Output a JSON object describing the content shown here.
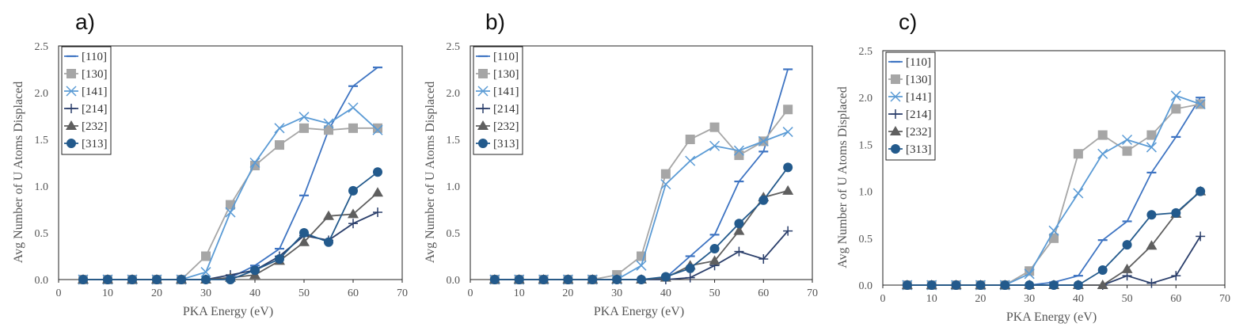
{
  "colors": {
    "110": "#3e74c2",
    "130": "#a6a6a6",
    "141": "#5b9bd5",
    "214": "#2b3f6b",
    "232": "#5f5f5f",
    "313": "#235a8c"
  },
  "chart_data": [
    {
      "panel": "a)",
      "type": "line",
      "xlabel": "PKA Energy (eV)",
      "ylabel": "Avg Number of U Atoms Displaced",
      "xlim": [
        0,
        70
      ],
      "ylim": [
        0,
        2.5
      ],
      "xticks": [
        "0",
        "10",
        "20",
        "30",
        "40",
        "50",
        "60",
        "70"
      ],
      "yticks": [
        "0.0",
        "0.5",
        "1.0",
        "1.5",
        "2.0",
        "2.5"
      ],
      "legend_position": "top-left",
      "x": [
        5,
        10,
        15,
        20,
        25,
        30,
        35,
        40,
        45,
        50,
        55,
        60,
        65
      ],
      "series": [
        {
          "name": "[110]",
          "marker": "dash",
          "values": [
            0,
            0,
            0,
            0,
            0,
            0,
            0.02,
            0.15,
            0.33,
            0.9,
            1.6,
            2.07,
            2.27
          ]
        },
        {
          "name": "[130]",
          "marker": "square",
          "values": [
            0,
            0,
            0,
            0,
            0,
            0.25,
            0.8,
            1.22,
            1.44,
            1.62,
            1.6,
            1.62,
            1.62
          ]
        },
        {
          "name": "[141]",
          "marker": "x",
          "values": [
            0,
            0,
            0,
            0,
            0,
            0.08,
            0.72,
            1.25,
            1.62,
            1.74,
            1.67,
            1.84,
            1.6
          ]
        },
        {
          "name": "[214]",
          "marker": "plus",
          "values": [
            0,
            0,
            0,
            0,
            0,
            0,
            0.05,
            0.1,
            0.25,
            0.47,
            0.42,
            0.6,
            0.72
          ]
        },
        {
          "name": "[232]",
          "marker": "triangle",
          "values": [
            0,
            0,
            0,
            0,
            0,
            0,
            0.02,
            0.05,
            0.2,
            0.4,
            0.68,
            0.7,
            0.93
          ]
        },
        {
          "name": "[313]",
          "marker": "circle",
          "values": [
            0,
            0,
            0,
            0,
            0,
            0,
            0,
            0.1,
            0.22,
            0.5,
            0.4,
            0.95,
            1.15
          ]
        }
      ]
    },
    {
      "panel": "b)",
      "type": "line",
      "xlabel": "PKA Energy (eV)",
      "ylabel": "Avg Number of U Atoms Displaced",
      "xlim": [
        0,
        70
      ],
      "ylim": [
        0,
        2.5
      ],
      "xticks": [
        "0",
        "10",
        "20",
        "30",
        "40",
        "50",
        "60",
        "70"
      ],
      "yticks": [
        "0.0",
        "0.5",
        "1.0",
        "1.5",
        "2.0",
        "2.5"
      ],
      "legend_position": "top-left",
      "x": [
        5,
        10,
        15,
        20,
        25,
        30,
        35,
        40,
        45,
        50,
        55,
        60,
        65
      ],
      "series": [
        {
          "name": "[110]",
          "marker": "dash",
          "values": [
            0,
            0,
            0,
            0,
            0,
            0,
            0,
            0.02,
            0.25,
            0.48,
            1.05,
            1.37,
            2.25
          ]
        },
        {
          "name": "[130]",
          "marker": "square",
          "values": [
            0,
            0,
            0,
            0,
            0,
            0.05,
            0.25,
            1.13,
            1.5,
            1.63,
            1.33,
            1.48,
            1.82
          ]
        },
        {
          "name": "[141]",
          "marker": "x",
          "values": [
            0,
            0,
            0,
            0,
            0,
            0,
            0.15,
            1.02,
            1.27,
            1.43,
            1.38,
            1.48,
            1.58
          ]
        },
        {
          "name": "[214]",
          "marker": "plus",
          "values": [
            0,
            0,
            0,
            0,
            0,
            0,
            0,
            0,
            0.02,
            0.15,
            0.3,
            0.22,
            0.52
          ]
        },
        {
          "name": "[232]",
          "marker": "triangle",
          "values": [
            0,
            0,
            0,
            0,
            0,
            0,
            0,
            0.02,
            0.15,
            0.2,
            0.52,
            0.88,
            0.95
          ]
        },
        {
          "name": "[313]",
          "marker": "circle",
          "values": [
            0,
            0,
            0,
            0,
            0,
            0,
            0,
            0.03,
            0.12,
            0.33,
            0.6,
            0.85,
            1.2
          ]
        }
      ]
    },
    {
      "panel": "c)",
      "type": "line",
      "xlabel": "PKA Energy (eV)",
      "ylabel": "Avg Number of U Atoms Displaced",
      "xlim": [
        0,
        70
      ],
      "ylim": [
        0,
        2.5
      ],
      "xticks": [
        "0",
        "10",
        "20",
        "30",
        "40",
        "50",
        "60",
        "70"
      ],
      "yticks": [
        "0.0",
        "0.5",
        "1.0",
        "1.5",
        "2.0",
        "2.5"
      ],
      "legend_position": "top-left",
      "x": [
        5,
        10,
        15,
        20,
        25,
        30,
        35,
        40,
        45,
        50,
        55,
        60,
        65
      ],
      "series": [
        {
          "name": "[110]",
          "marker": "dash",
          "values": [
            0,
            0,
            0,
            0,
            0,
            0,
            0.03,
            0.1,
            0.48,
            0.68,
            1.2,
            1.58,
            2.0
          ]
        },
        {
          "name": "[130]",
          "marker": "square",
          "values": [
            0,
            0,
            0,
            0,
            0,
            0.15,
            0.5,
            1.4,
            1.6,
            1.43,
            1.6,
            1.88,
            1.93
          ]
        },
        {
          "name": "[141]",
          "marker": "x",
          "values": [
            0,
            0,
            0,
            0,
            0,
            0.12,
            0.58,
            0.98,
            1.4,
            1.55,
            1.47,
            2.02,
            1.93
          ]
        },
        {
          "name": "[214]",
          "marker": "plus",
          "values": [
            0,
            0,
            0,
            0,
            0,
            0,
            0,
            0,
            0,
            0.1,
            0.02,
            0.1,
            0.52
          ]
        },
        {
          "name": "[232]",
          "marker": "triangle",
          "values": [
            0,
            0,
            0,
            0,
            0,
            0,
            0,
            0,
            0,
            0.17,
            0.42,
            0.76,
            1.0
          ]
        },
        {
          "name": "[313]",
          "marker": "circle",
          "values": [
            0,
            0,
            0,
            0,
            0,
            0,
            0,
            0,
            0.16,
            0.43,
            0.75,
            0.77,
            1.0
          ]
        }
      ]
    }
  ]
}
